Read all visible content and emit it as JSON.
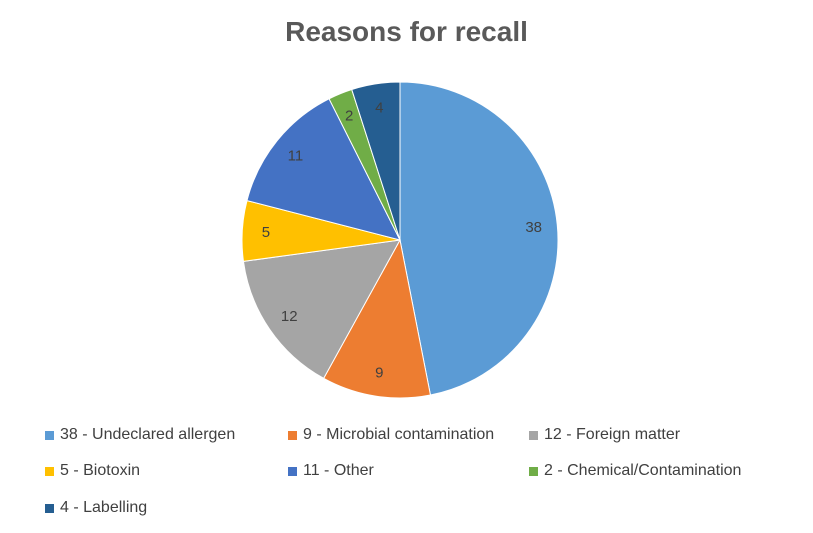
{
  "chart_data": {
    "type": "pie",
    "title": "Reasons for recall",
    "categories": [
      "Undeclared allergen",
      "Microbial contamination",
      "Foreign matter",
      "Biotoxin",
      "Other",
      "Chemical/Contamination",
      "Labelling"
    ],
    "values": [
      38,
      9,
      12,
      5,
      11,
      2,
      4
    ],
    "legend_labels": [
      "38 - Undeclared allergen",
      "9 - Microbial contamination",
      "12 - Foreign matter",
      "5 - Biotoxin",
      "11 - Other",
      "2 - Chemical/Contamination",
      "4 - Labelling"
    ],
    "colors": [
      "#5B9BD5",
      "#ED7D31",
      "#A5A5A5",
      "#FFC000",
      "#4472C4",
      "#70AD47",
      "#255E91"
    ],
    "start": "top",
    "direction": "clockwise",
    "legend_position": "bottom"
  }
}
